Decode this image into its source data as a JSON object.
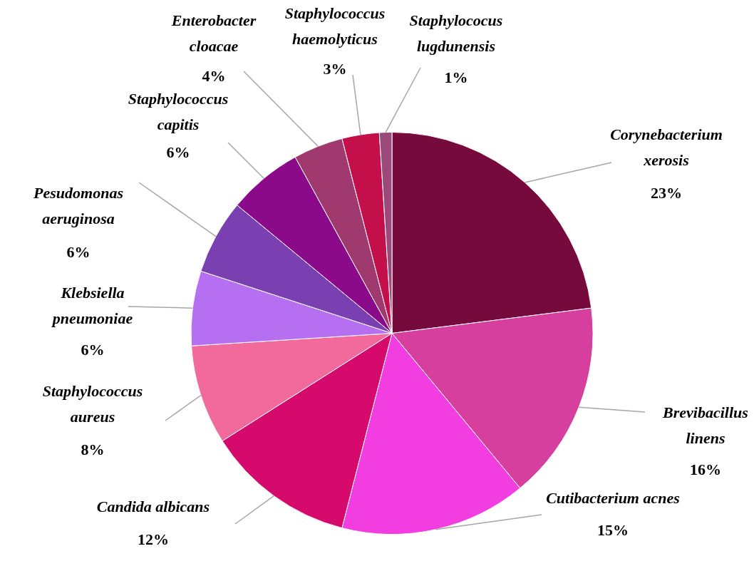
{
  "chart_data": {
    "type": "pie",
    "categories": [
      "Corynebacterium xerosis",
      "Brevibacillus linens",
      "Cutibacterium acnes",
      "Candida albicans",
      "Staphylococcus aureus",
      "Klebsiella pneumoniae",
      "Pesudomonas aeruginosa",
      "Staphylococcus capitis",
      "Enterobacter cloacae",
      "Staphylococcus haemolyticus",
      "Staphylococus lugdunensis"
    ],
    "values": [
      23,
      16,
      15,
      12,
      8,
      6,
      6,
      6,
      4,
      3,
      1
    ],
    "colors": [
      "#760a3c",
      "#d63f9e",
      "#f23ee0",
      "#d6096d",
      "#f26a9b",
      "#b56ff0",
      "#7a3fb0",
      "#8a0a8a",
      "#a03a6e",
      "#c4104a",
      "#9a4a7a"
    ],
    "value_labels": [
      "23%",
      "16%",
      "15%",
      "12%",
      "8%",
      "6%",
      "6%",
      "6%",
      "4%",
      "3%",
      "1%"
    ],
    "legend": false
  }
}
